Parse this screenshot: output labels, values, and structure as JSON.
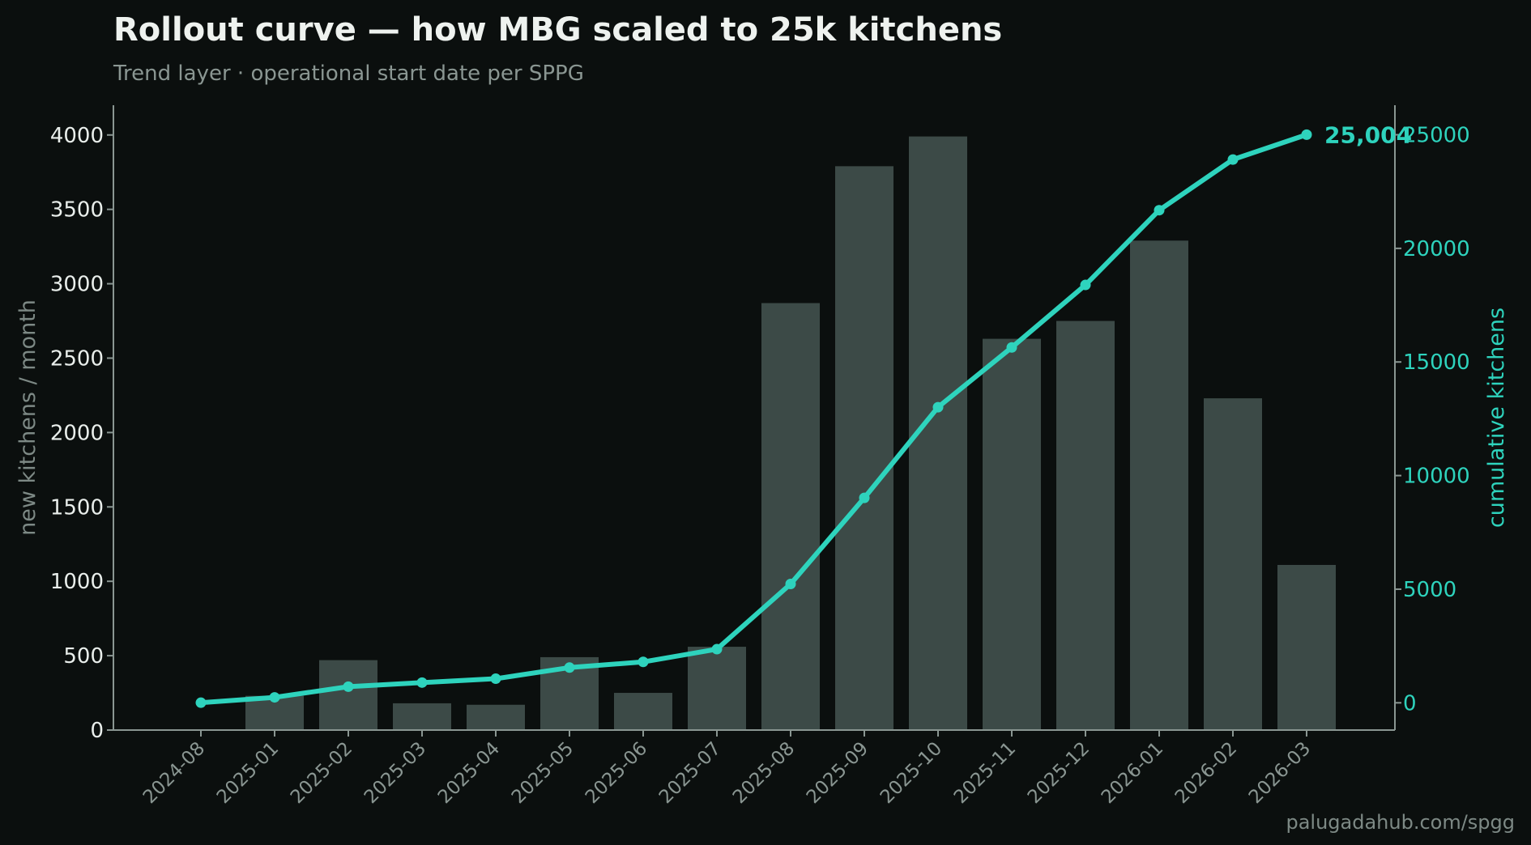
{
  "title": "Rollout curve — how MBG scaled to 25k kitchens",
  "subtitle": "Trend layer · operational start date per SPPG",
  "footer": "palugadahub.com/spgg",
  "colors": {
    "background": "#0b0f0e",
    "bar": "#3c4a47",
    "line": "#2ed3bd",
    "axis": "#8a9692"
  },
  "chart_data": {
    "type": "bar",
    "categories": [
      "2024-08",
      "2025-01",
      "2025-02",
      "2025-03",
      "2025-04",
      "2025-05",
      "2025-06",
      "2025-07",
      "2025-08",
      "2025-09",
      "2025-10",
      "2025-11",
      "2025-12",
      "2026-01",
      "2026-02",
      "2026-03"
    ],
    "series": [
      {
        "type": "bar",
        "axis": "left",
        "values": [
          0,
          230,
          470,
          180,
          170,
          490,
          250,
          560,
          2870,
          3790,
          3990,
          2630,
          2750,
          3290,
          2230,
          1110
        ]
      },
      {
        "type": "line",
        "axis": "right",
        "values": [
          5,
          240,
          710,
          890,
          1060,
          1550,
          1800,
          2360,
          5230,
          9020,
          13010,
          15640,
          18390,
          21680,
          23910,
          25004
        ]
      }
    ],
    "ylabel": "new kitchens / month",
    "ylabel_right": "cumulative kitchens",
    "ylim": [
      0,
      4200
    ],
    "ylim_right": [
      -1200,
      26300
    ],
    "yticks": [
      0,
      500,
      1000,
      1500,
      2000,
      2500,
      3000,
      3500,
      4000
    ],
    "yticks_right": [
      0,
      5000,
      10000,
      15000,
      20000,
      25000
    ],
    "end_label": "25,004",
    "grid": false,
    "legend": "none"
  }
}
